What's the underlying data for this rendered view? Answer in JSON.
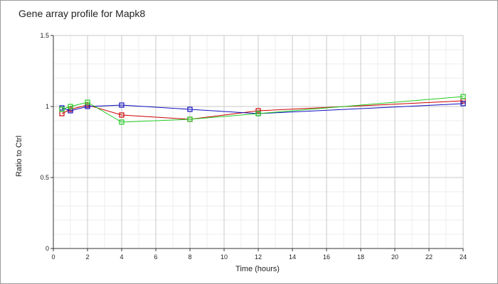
{
  "chart_data": {
    "type": "line",
    "title": "Gene array profile for Mapk8",
    "xlabel": "Time (hours)",
    "ylabel": "Ratio to Ctrl",
    "xlim": [
      0,
      24
    ],
    "ylim": [
      0,
      1.5
    ],
    "xticks": [
      "0",
      "2",
      "4",
      "6",
      "8",
      "10",
      "12",
      "14",
      "16",
      "18",
      "20",
      "22",
      "24"
    ],
    "yticks": [
      "0",
      "0.5",
      "1",
      "1.5"
    ],
    "grid": true,
    "legend": "none",
    "marker": "open-square",
    "series": [
      {
        "color": "#cc0000",
        "x": [
          0.5,
          1,
          2,
          4,
          8,
          12,
          24
        ],
        "y": [
          0.95,
          0.98,
          1.01,
          0.94,
          0.91,
          0.97,
          1.04
        ]
      },
      {
        "color": "#1010c0",
        "x": [
          0.5,
          1,
          2,
          4,
          8,
          12,
          24
        ],
        "y": [
          0.99,
          0.97,
          1.0,
          1.01,
          0.98,
          0.95,
          1.02
        ]
      },
      {
        "color": "#22cc22",
        "x": [
          0.5,
          1,
          2,
          4,
          8,
          12,
          24
        ],
        "y": [
          0.98,
          1.0,
          1.03,
          0.89,
          0.91,
          0.95,
          1.07
        ]
      }
    ]
  }
}
